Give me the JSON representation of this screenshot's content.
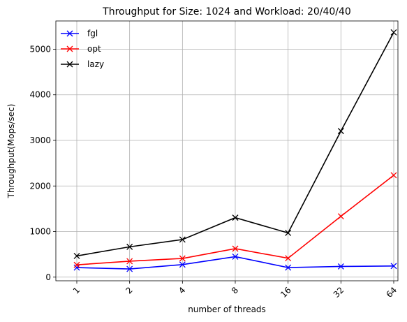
{
  "chart_data": {
    "type": "line",
    "title": "Throughput for Size: 1024 and Workload: 20/40/40",
    "xlabel": "number of threads",
    "ylabel": "Throughput(Mops/sec)",
    "categories": [
      "1",
      "2",
      "4",
      "8",
      "16",
      "32",
      "64"
    ],
    "ylim": [
      -80,
      5620
    ],
    "yticks": [
      0,
      1000,
      2000,
      3000,
      4000,
      5000
    ],
    "grid": true,
    "legend": "top-left",
    "series": [
      {
        "name": "fgl",
        "color": "#0000ff",
        "marker": "x",
        "values": [
          210,
          180,
          275,
          450,
          210,
          235,
          245
        ]
      },
      {
        "name": "opt",
        "color": "#ff0000",
        "marker": "x",
        "values": [
          270,
          350,
          410,
          625,
          415,
          1335,
          2235
        ]
      },
      {
        "name": "lazy",
        "color": "#000000",
        "marker": "x",
        "values": [
          465,
          665,
          825,
          1305,
          970,
          3205,
          5370
        ]
      }
    ]
  }
}
